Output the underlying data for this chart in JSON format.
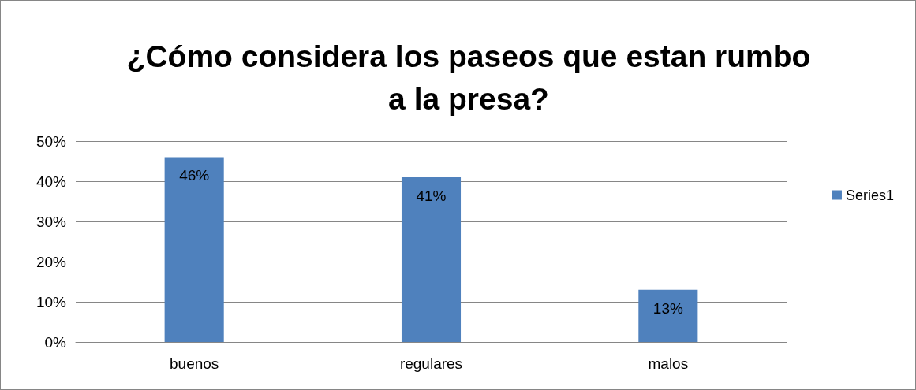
{
  "chart_data": {
    "type": "bar",
    "title": "¿Cómo considera los paseos que estan rumbo\na la presa?",
    "categories": [
      "buenos",
      "regulares",
      "malos"
    ],
    "series": [
      {
        "name": "Series1",
        "color": "#4f81bd",
        "values": [
          46,
          41,
          13
        ],
        "value_labels": [
          "46%",
          "41%",
          "13%"
        ]
      }
    ],
    "ylim": [
      0,
      50
    ],
    "yticks": [
      {
        "value": 0,
        "label": "0%"
      },
      {
        "value": 10,
        "label": "10%"
      },
      {
        "value": 20,
        "label": "20%"
      },
      {
        "value": 30,
        "label": "30%"
      },
      {
        "value": 40,
        "label": "40%"
      },
      {
        "value": 50,
        "label": "50%"
      }
    ],
    "grid": "y",
    "legend": "right"
  }
}
